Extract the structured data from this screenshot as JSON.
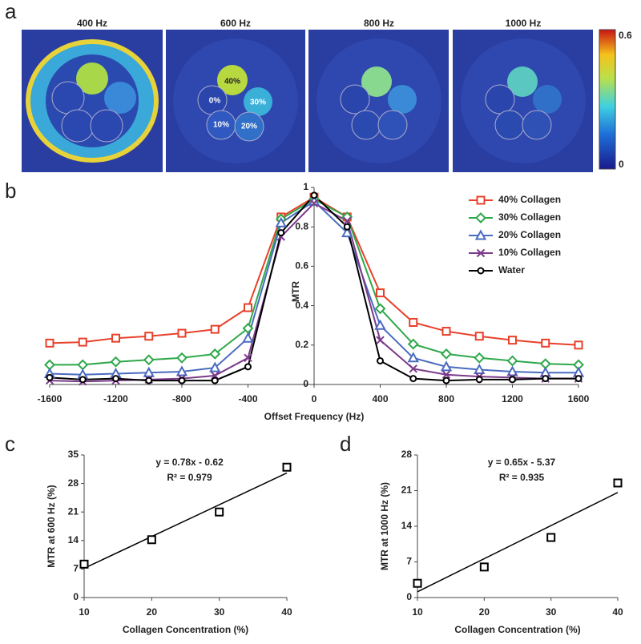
{
  "panel_labels": [
    "a",
    "b",
    "c",
    "d"
  ],
  "images": {
    "titles": [
      "400 Hz",
      "600 Hz",
      "800 Hz",
      "1000 Hz"
    ],
    "roi_labels": [
      "40%",
      "0%",
      "30%",
      "10%",
      "20%"
    ],
    "colorbar": {
      "ylim": [
        0,
        0.6
      ],
      "yticks": [
        0,
        0.6
      ]
    }
  },
  "chart_data": [
    {
      "type": "line",
      "xlabel": "Offset Frequency (Hz)",
      "ylabel": "MTR",
      "x": [
        -1600,
        -1400,
        -1200,
        -1000,
        -800,
        -600,
        -400,
        -200,
        0,
        200,
        400,
        600,
        800,
        1000,
        1200,
        1400,
        1600
      ],
      "xlim": [
        -1600,
        1600
      ],
      "xticks": [
        -1600,
        -1200,
        -800,
        -400,
        0,
        400,
        800,
        1200,
        1600
      ],
      "ylim": [
        0,
        1
      ],
      "yticks": [
        0,
        0.2,
        0.4,
        0.6,
        0.8,
        1
      ],
      "series": [
        {
          "name": "40% Collagen",
          "color": "#e8402a",
          "marker": "square",
          "values": [
            0.21,
            0.215,
            0.235,
            0.245,
            0.26,
            0.28,
            0.39,
            0.85,
            0.95,
            0.85,
            0.465,
            0.315,
            0.27,
            0.245,
            0.225,
            0.21,
            0.2
          ]
        },
        {
          "name": "30% Collagen",
          "color": "#2ea84a",
          "marker": "diamond",
          "values": [
            0.1,
            0.1,
            0.115,
            0.125,
            0.135,
            0.155,
            0.285,
            0.84,
            0.94,
            0.85,
            0.385,
            0.205,
            0.155,
            0.135,
            0.12,
            0.105,
            0.1
          ]
        },
        {
          "name": "20% Collagen",
          "color": "#4a6bbf",
          "marker": "triangle",
          "values": [
            0.055,
            0.05,
            0.055,
            0.06,
            0.065,
            0.085,
            0.235,
            0.82,
            0.93,
            0.77,
            0.3,
            0.135,
            0.09,
            0.075,
            0.065,
            0.06,
            0.06
          ]
        },
        {
          "name": "10% Collagen",
          "color": "#7b3a8a",
          "marker": "x",
          "values": [
            0.02,
            0.015,
            0.02,
            0.025,
            0.03,
            0.045,
            0.135,
            0.75,
            0.92,
            0.83,
            0.225,
            0.08,
            0.05,
            0.04,
            0.035,
            0.03,
            0.03
          ]
        },
        {
          "name": "Water",
          "color": "#000000",
          "marker": "circle",
          "values": [
            0.035,
            0.025,
            0.03,
            0.02,
            0.02,
            0.02,
            0.09,
            0.77,
            0.96,
            0.8,
            0.12,
            0.03,
            0.02,
            0.025,
            0.025,
            0.03,
            0.03
          ]
        }
      ]
    },
    {
      "type": "scatter",
      "xlabel": "Collagen Concentration (%)",
      "ylabel": "MTR at 600 Hz (%)",
      "x": [
        10,
        20,
        30,
        40
      ],
      "values": [
        8.2,
        14.2,
        21,
        32
      ],
      "xlim": [
        10,
        40
      ],
      "xticks": [
        10,
        20,
        30,
        40
      ],
      "ylim": [
        0,
        35
      ],
      "yticks": [
        0,
        7,
        14,
        21,
        28,
        35
      ],
      "trendline": {
        "slope": 0.78,
        "intercept": -0.62
      },
      "annotations": [
        "y = 0.78x - 0.62",
        "R² = 0.979"
      ]
    },
    {
      "type": "scatter",
      "xlabel": "Collagen Concentration (%)",
      "ylabel": "MTR at 1000 Hz (%)",
      "x": [
        10,
        20,
        30,
        40
      ],
      "values": [
        2.8,
        6,
        11.8,
        22.5
      ],
      "xlim": [
        10,
        40
      ],
      "xticks": [
        10,
        20,
        30,
        40
      ],
      "ylim": [
        0,
        28
      ],
      "yticks": [
        0,
        7,
        14,
        21,
        28
      ],
      "trendline": {
        "slope": 0.65,
        "intercept": -5.37
      },
      "annotations": [
        "y = 0.65x - 5.37",
        "R² = 0.935"
      ]
    }
  ]
}
